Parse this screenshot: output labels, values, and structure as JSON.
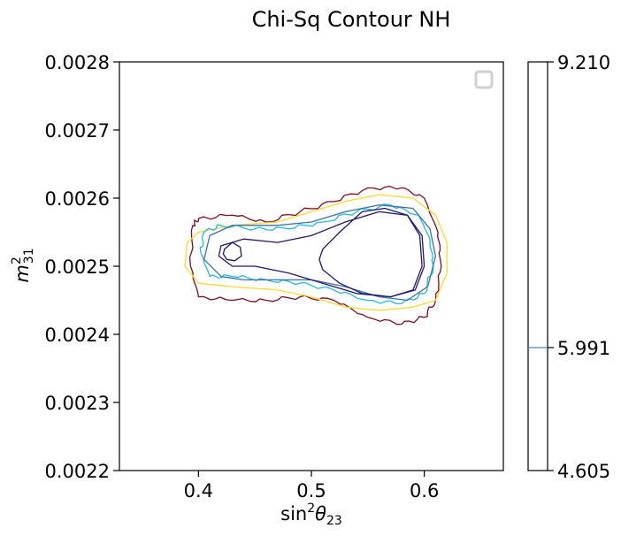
{
  "chart_data": {
    "type": "contour",
    "title": "Chi-Sq Contour NH",
    "xlabel_main": "sin",
    "xlabel_sup": "2",
    "xlabel_theta": "θ",
    "xlabel_sub": "23",
    "ylabel_main": "m",
    "ylabel_sup": "2",
    "ylabel_sub": "31",
    "xlim": [
      0.33,
      0.67
    ],
    "ylim": [
      0.0022,
      0.0028
    ],
    "x_ticks": [
      {
        "value": 0.4,
        "label": "0.4"
      },
      {
        "value": 0.5,
        "label": "0.5"
      },
      {
        "value": 0.6,
        "label": "0.6"
      }
    ],
    "y_ticks": [
      {
        "value": 0.0022,
        "label": "0.0022"
      },
      {
        "value": 0.0023,
        "label": "0.0023"
      },
      {
        "value": 0.0024,
        "label": "0.0024"
      },
      {
        "value": 0.0025,
        "label": "0.0025"
      },
      {
        "value": 0.0026,
        "label": "0.0026"
      },
      {
        "value": 0.0027,
        "label": "0.0027"
      },
      {
        "value": 0.0028,
        "label": "0.0028"
      }
    ],
    "legend": {
      "placement": "top-right",
      "entries": []
    },
    "colorbar": {
      "range": [
        4.605,
        9.21
      ],
      "ticks": [
        {
          "value": 9.21,
          "label": "9.210"
        },
        {
          "value": 5.991,
          "label": "5.991"
        },
        {
          "value": 4.605,
          "label": "4.605"
        }
      ],
      "lines": [
        {
          "value": 5.991,
          "color": "#3b74b8"
        }
      ]
    },
    "contours": [
      {
        "color": "#7a0f20",
        "wobbly": true,
        "polyline": [
          [
            0.395,
            0.00256
          ],
          [
            0.4,
            0.00257
          ],
          [
            0.43,
            0.002575
          ],
          [
            0.46,
            0.002565
          ],
          [
            0.49,
            0.00258
          ],
          [
            0.52,
            0.002595
          ],
          [
            0.55,
            0.002615
          ],
          [
            0.58,
            0.002615
          ],
          [
            0.6,
            0.0026
          ],
          [
            0.612,
            0.00255
          ],
          [
            0.615,
            0.0025
          ],
          [
            0.61,
            0.00245
          ],
          [
            0.6,
            0.002425
          ],
          [
            0.58,
            0.002415
          ],
          [
            0.55,
            0.002425
          ],
          [
            0.52,
            0.00245
          ],
          [
            0.49,
            0.002455
          ],
          [
            0.46,
            0.00245
          ],
          [
            0.43,
            0.00245
          ],
          [
            0.4,
            0.002455
          ],
          [
            0.393,
            0.0025
          ],
          [
            0.395,
            0.00256
          ]
        ]
      },
      {
        "color": "#ffd92f",
        "wobbly": false,
        "polyline": [
          [
            0.39,
            0.002535
          ],
          [
            0.4,
            0.00255
          ],
          [
            0.43,
            0.00256
          ],
          [
            0.47,
            0.002565
          ],
          [
            0.5,
            0.00258
          ],
          [
            0.53,
            0.002595
          ],
          [
            0.56,
            0.002605
          ],
          [
            0.59,
            0.0026
          ],
          [
            0.61,
            0.002575
          ],
          [
            0.62,
            0.002535
          ],
          [
            0.62,
            0.00249
          ],
          [
            0.61,
            0.00245
          ],
          [
            0.59,
            0.00244
          ],
          [
            0.56,
            0.002435
          ],
          [
            0.53,
            0.00244
          ],
          [
            0.5,
            0.002455
          ],
          [
            0.47,
            0.002465
          ],
          [
            0.43,
            0.00247
          ],
          [
            0.4,
            0.002475
          ],
          [
            0.388,
            0.0025
          ],
          [
            0.39,
            0.002535
          ]
        ]
      },
      {
        "color": "#23b8e8",
        "wobbly": true,
        "polyline": [
          [
            0.405,
            0.00255
          ],
          [
            0.42,
            0.00256
          ],
          [
            0.45,
            0.002555
          ],
          [
            0.48,
            0.002555
          ],
          [
            0.51,
            0.002565
          ],
          [
            0.54,
            0.00258
          ],
          [
            0.57,
            0.00259
          ],
          [
            0.595,
            0.002575
          ],
          [
            0.605,
            0.00254
          ],
          [
            0.608,
            0.0025
          ],
          [
            0.6,
            0.00246
          ],
          [
            0.58,
            0.002445
          ],
          [
            0.55,
            0.00245
          ],
          [
            0.52,
            0.002465
          ],
          [
            0.49,
            0.002475
          ],
          [
            0.46,
            0.00248
          ],
          [
            0.43,
            0.002485
          ],
          [
            0.41,
            0.002485
          ],
          [
            0.402,
            0.00252
          ],
          [
            0.405,
            0.00255
          ]
        ]
      },
      {
        "color": "#3a72a8",
        "wobbly": false,
        "polyline": [
          [
            0.41,
            0.002545
          ],
          [
            0.43,
            0.00256
          ],
          [
            0.47,
            0.00256
          ],
          [
            0.5,
            0.002565
          ],
          [
            0.53,
            0.00258
          ],
          [
            0.56,
            0.00259
          ],
          [
            0.59,
            0.002585
          ],
          [
            0.605,
            0.002555
          ],
          [
            0.61,
            0.002515
          ],
          [
            0.603,
            0.00247
          ],
          [
            0.585,
            0.00245
          ],
          [
            0.56,
            0.002455
          ],
          [
            0.53,
            0.00247
          ],
          [
            0.5,
            0.00248
          ],
          [
            0.47,
            0.00248
          ],
          [
            0.44,
            0.00248
          ],
          [
            0.42,
            0.002485
          ],
          [
            0.405,
            0.00251
          ],
          [
            0.41,
            0.002545
          ]
        ]
      },
      {
        "color": "#2a1560",
        "wobbly": false,
        "polyline": [
          [
            0.42,
            0.00253
          ],
          [
            0.44,
            0.00254
          ],
          [
            0.47,
            0.002535
          ],
          [
            0.5,
            0.002545
          ],
          [
            0.53,
            0.002565
          ],
          [
            0.56,
            0.00258
          ],
          [
            0.585,
            0.002575
          ],
          [
            0.598,
            0.002545
          ],
          [
            0.6,
            0.0025
          ],
          [
            0.592,
            0.002465
          ],
          [
            0.57,
            0.002455
          ],
          [
            0.54,
            0.00246
          ],
          [
            0.51,
            0.002475
          ],
          [
            0.48,
            0.00249
          ],
          [
            0.45,
            0.0025
          ],
          [
            0.43,
            0.0025
          ],
          [
            0.418,
            0.002515
          ],
          [
            0.42,
            0.00253
          ]
        ]
      },
      {
        "color": "#1a1a6e",
        "wobbly": false,
        "polyline": [
          [
            0.51,
            0.002525
          ],
          [
            0.525,
            0.00255
          ],
          [
            0.545,
            0.00258
          ],
          [
            0.565,
            0.002585
          ],
          [
            0.585,
            0.002575
          ],
          [
            0.596,
            0.002545
          ],
          [
            0.598,
            0.0025
          ],
          [
            0.59,
            0.002465
          ],
          [
            0.57,
            0.002455
          ],
          [
            0.545,
            0.00246
          ],
          [
            0.525,
            0.002475
          ],
          [
            0.51,
            0.002495
          ],
          [
            0.507,
            0.00251
          ],
          [
            0.51,
            0.002525
          ]
        ]
      },
      {
        "color": "#1a1a6e",
        "wobbly": false,
        "polyline": [
          [
            0.423,
            0.002525
          ],
          [
            0.43,
            0.002535
          ],
          [
            0.437,
            0.002528
          ],
          [
            0.438,
            0.002515
          ],
          [
            0.432,
            0.002508
          ],
          [
            0.425,
            0.00251
          ],
          [
            0.422,
            0.002518
          ],
          [
            0.423,
            0.002525
          ]
        ]
      }
    ]
  }
}
